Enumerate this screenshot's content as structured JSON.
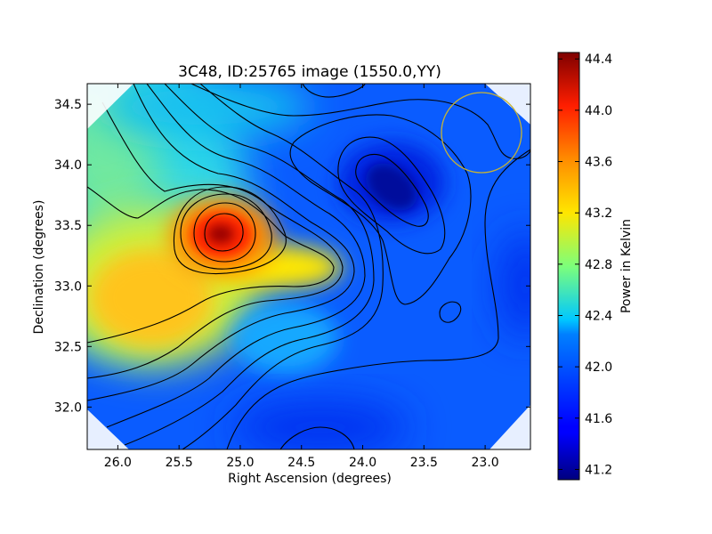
{
  "chart_data": {
    "type": "heatmap",
    "title": "3C48, ID:25765 image (1550.0,YY)",
    "xlabel": "Right Ascension (degrees)",
    "ylabel": "Declination (degrees)",
    "xlim": [
      26.25,
      22.63
    ],
    "ylim": [
      31.65,
      34.67
    ],
    "x_ticks": [
      26.0,
      25.5,
      25.0,
      24.5,
      24.0,
      23.5,
      23.0
    ],
    "x_tick_labels": [
      "26.0",
      "25.5",
      "25.0",
      "24.5",
      "24.0",
      "23.5",
      "23.0"
    ],
    "y_ticks": [
      32.0,
      32.5,
      33.0,
      33.5,
      34.0,
      34.5
    ],
    "y_tick_labels": [
      "32.0",
      "32.5",
      "33.0",
      "33.5",
      "34.0",
      "34.5"
    ],
    "colorbar": {
      "label": "Power in Kelvin",
      "range": [
        41.12,
        44.45
      ],
      "ticks": [
        41.2,
        41.6,
        42.0,
        42.4,
        42.8,
        43.2,
        43.6,
        44.0,
        44.4
      ],
      "tick_labels": [
        "41.2",
        "41.6",
        "42.0",
        "42.4",
        "42.8",
        "43.2",
        "43.6",
        "44.0",
        "44.4"
      ],
      "colormap": "jet"
    },
    "features": [
      {
        "kind": "peak",
        "ra": 25.17,
        "dec": 33.42,
        "value": 44.4
      },
      {
        "kind": "trough",
        "ra": 23.75,
        "dec": 33.78,
        "value": 41.2
      },
      {
        "kind": "broad-high",
        "ra": 25.75,
        "dec": 32.85,
        "value": 43.5
      },
      {
        "kind": "small-dip",
        "ra": 23.28,
        "dec": 32.78,
        "value": 41.7
      },
      {
        "kind": "beam-circle",
        "ra": 23.0,
        "dec": 34.25,
        "radius_deg": 0.33,
        "color": "#c8b432"
      }
    ],
    "background_value": 41.9,
    "grid": false,
    "contours": true
  }
}
